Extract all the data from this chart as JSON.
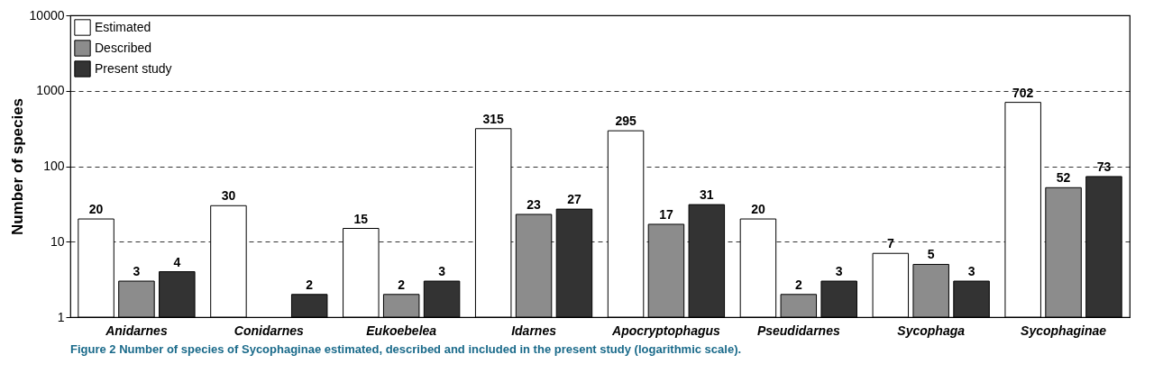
{
  "chart_data": {
    "type": "bar",
    "ylabel": "Number of species",
    "categories": [
      "Anidarnes",
      "Conidarnes",
      "Eukoebelea",
      "Idarnes",
      "Apocryptophagus",
      "Pseudidarnes",
      "Sycophaga",
      "Sycophaginae"
    ],
    "series": [
      {
        "name": "Estimated",
        "color": "#ffffff",
        "values": [
          20,
          30,
          15,
          315,
          295,
          20,
          7,
          702
        ]
      },
      {
        "name": "Described",
        "color": "#8c8c8c",
        "values": [
          3,
          null,
          2,
          23,
          17,
          2,
          5,
          52
        ]
      },
      {
        "name": "Present study",
        "color": "#333333",
        "values": [
          4,
          2,
          3,
          27,
          31,
          3,
          3,
          73
        ]
      }
    ],
    "log": true,
    "ylim": [
      1,
      10000
    ],
    "yticks": [
      1,
      10,
      100,
      1000,
      10000
    ],
    "grid": "y",
    "line_style": "dashed",
    "legend": "top left",
    "data_labels": true,
    "annotations": [
      "Figure 2 Number of species of Sycophaginae estimated, described and included in the present study (logarithmic scale)."
    ]
  }
}
